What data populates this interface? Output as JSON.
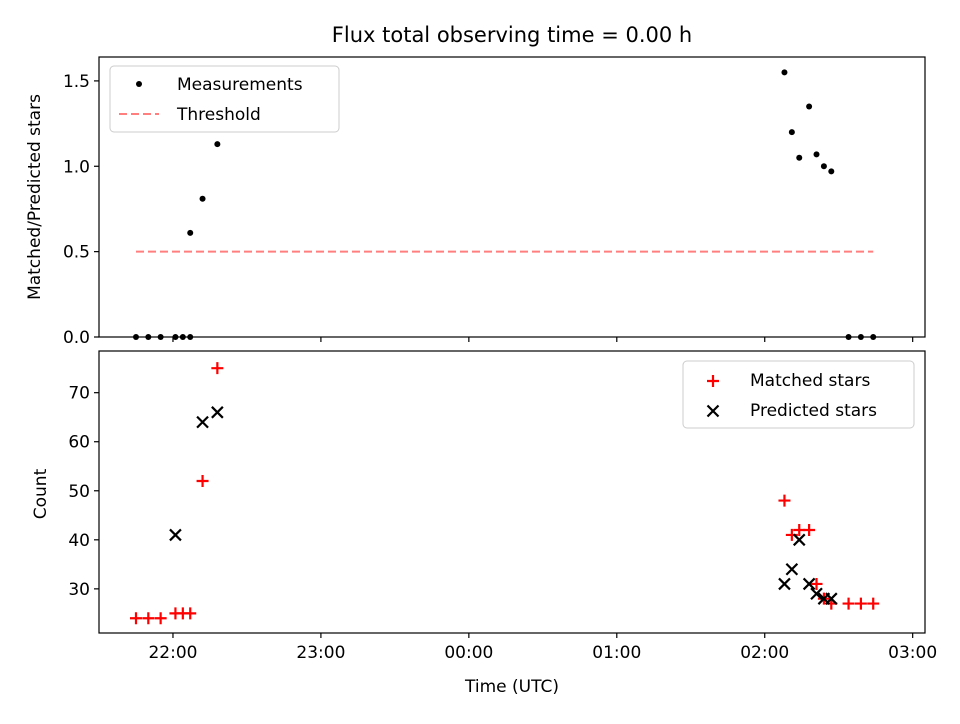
{
  "colors": {
    "measurement": "#000000",
    "threshold": "#ff7f7f",
    "matched": "#ff0000",
    "predicted": "#000000"
  },
  "chart_data": [
    {
      "type": "scatter",
      "title": "Flux total observing time = 0.00 h",
      "xlabel": "",
      "ylabel": "Matched/Predicted stars",
      "xlim": [
        -150,
        185
      ],
      "ylim": [
        0,
        1.64
      ],
      "yticks": [
        {
          "value": 0.0,
          "label": "0.0"
        },
        {
          "value": 0.5,
          "label": "0.5"
        },
        {
          "value": 1.0,
          "label": "1.0"
        },
        {
          "value": 1.5,
          "label": "1.5"
        }
      ],
      "legend_position": "top-left",
      "series": [
        {
          "name": "Measurements",
          "marker": "dot",
          "x": [
            -135,
            -130,
            -125,
            -119,
            -116,
            -113,
            -113,
            -108,
            -102,
            128,
            131,
            134,
            138,
            141,
            144,
            147,
            154,
            159,
            164
          ],
          "y": [
            0,
            0,
            0,
            0,
            0,
            0,
            0.61,
            0.81,
            1.13,
            1.55,
            1.2,
            1.05,
            1.35,
            1.07,
            1.0,
            0.97,
            0,
            0,
            0
          ]
        },
        {
          "name": "Threshold",
          "marker": "dashed-line",
          "x": [
            -135,
            164
          ],
          "y": [
            0.5,
            0.5
          ]
        }
      ]
    },
    {
      "type": "scatter",
      "xlabel": "Time (UTC)",
      "ylabel": "Count",
      "xlim": [
        -150,
        185
      ],
      "ylim": [
        21,
        78.5
      ],
      "xticks": [
        {
          "value": -120,
          "label": "22:00"
        },
        {
          "value": -60,
          "label": "23:00"
        },
        {
          "value": 0,
          "label": "00:00"
        },
        {
          "value": 60,
          "label": "01:00"
        },
        {
          "value": 120,
          "label": "02:00"
        },
        {
          "value": 180,
          "label": "03:00"
        }
      ],
      "yticks": [
        {
          "value": 30,
          "label": "30"
        },
        {
          "value": 40,
          "label": "40"
        },
        {
          "value": 50,
          "label": "50"
        },
        {
          "value": 60,
          "label": "60"
        },
        {
          "value": 70,
          "label": "70"
        }
      ],
      "legend_position": "top-right",
      "series": [
        {
          "name": "Matched stars",
          "marker": "plus",
          "x": [
            -135,
            -130,
            -125,
            -119,
            -116,
            -113,
            -108,
            -102,
            128,
            131,
            134,
            138,
            141,
            144,
            147,
            154,
            159,
            164
          ],
          "y": [
            24,
            24,
            24,
            25,
            25,
            25,
            52,
            75,
            48,
            41,
            42,
            42,
            31,
            28,
            27,
            27,
            27,
            27
          ]
        },
        {
          "name": "Predicted stars",
          "marker": "x",
          "x": [
            -119,
            -108,
            -102,
            128,
            131,
            134,
            138,
            141,
            144,
            147
          ],
          "y": [
            41,
            64,
            66,
            31,
            34,
            40,
            31,
            29,
            28,
            28
          ]
        }
      ]
    }
  ]
}
